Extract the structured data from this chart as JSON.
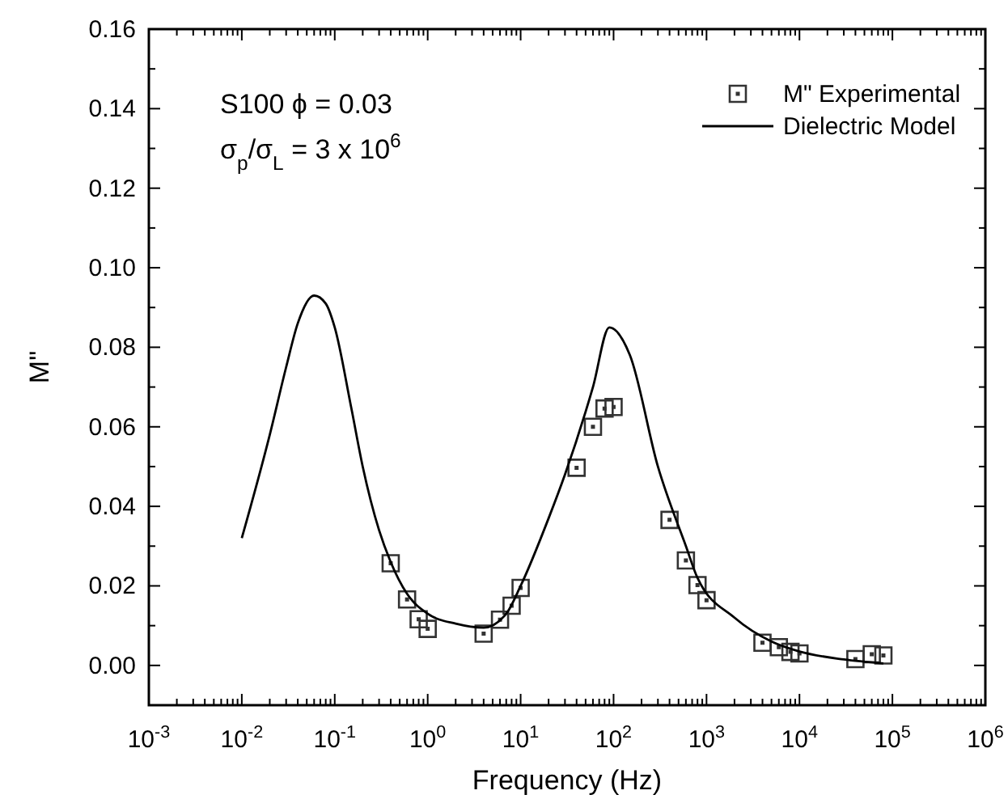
{
  "chart_data": {
    "type": "scatter",
    "xlabel": "Frequency (Hz)",
    "ylabel": "M\"",
    "log": "x",
    "legend": "top right",
    "grid": false,
    "xlim": [
      0.001,
      1000000
    ],
    "ylim": [
      -0.01,
      0.16
    ],
    "xticks": [
      {
        "value": 0.001,
        "label": "10$^{-3}$"
      },
      {
        "value": 0.01,
        "label": "10$^{-2}$"
      },
      {
        "value": 0.1,
        "label": "10$^{-1}$"
      },
      {
        "value": 1,
        "label": "10$^{0}$"
      },
      {
        "value": 10,
        "label": "10$^{1}$"
      },
      {
        "value": 100,
        "label": "10$^{2}$"
      },
      {
        "value": 1000,
        "label": "10$^{3}$"
      },
      {
        "value": 10000,
        "label": "10$^{4}$"
      },
      {
        "value": 100000,
        "label": "10$^{5}$"
      },
      {
        "value": 1000000,
        "label": "10$^{6}$"
      }
    ],
    "yticks": [
      {
        "value": 0,
        "label": "0.00"
      },
      {
        "value": 0.01,
        "label": null
      },
      {
        "value": 0.02,
        "label": "0.02"
      },
      {
        "value": 0.03,
        "label": null
      },
      {
        "value": 0.04,
        "label": "0.04"
      },
      {
        "value": 0.05,
        "label": null
      },
      {
        "value": 0.06,
        "label": "0.06"
      },
      {
        "value": 0.07,
        "label": null
      },
      {
        "value": 0.08,
        "label": "0.08"
      },
      {
        "value": 0.09,
        "label": null
      },
      {
        "value": 0.1,
        "label": "0.10"
      },
      {
        "value": 0.11,
        "label": null
      },
      {
        "value": 0.12,
        "label": "0.12"
      },
      {
        "value": 0.13,
        "label": null
      },
      {
        "value": 0.14,
        "label": "0.14"
      },
      {
        "value": 0.15,
        "label": null
      },
      {
        "value": 0.16,
        "label": "0.16"
      }
    ],
    "annotations": [
      "S100 ϕ = 0.03",
      "σ$_{p}$/σ$_{L}$ = 3 x 10$^{6}$"
    ],
    "series": [
      {
        "name": "M\" Experimental",
        "type": "scatter",
        "marker": "square",
        "color": "#333333",
        "x": [
          0.4,
          0.6,
          0.8,
          1,
          4,
          6,
          8,
          10,
          40,
          60,
          80,
          100,
          400,
          600,
          800,
          1000,
          4000,
          6000,
          8000,
          10000,
          40000,
          60000,
          80000
        ],
        "values": [
          0.0257,
          0.0166,
          0.0116,
          0.0092,
          0.008,
          0.0115,
          0.015,
          0.0195,
          0.0497,
          0.06,
          0.0646,
          0.065,
          0.0366,
          0.0264,
          0.0202,
          0.0164,
          0.0057,
          0.0046,
          0.0034,
          0.003,
          0.0016,
          0.0028,
          0.0025
        ]
      },
      {
        "name": "Dielectric Model",
        "type": "line",
        "marker": "none",
        "line_style": "solid",
        "color": "#000000",
        "x": [
          0.01,
          0.02,
          0.03,
          0.04,
          0.06,
          0.08,
          0.1,
          0.15,
          0.2,
          0.3,
          0.4,
          0.6,
          1,
          2,
          4,
          7,
          10,
          20,
          30,
          60,
          90,
          150,
          300,
          600,
          800,
          2000,
          5000,
          10000,
          30000,
          80000
        ],
        "values": [
          0.032,
          0.058,
          0.075,
          0.086,
          0.093,
          0.091,
          0.085,
          0.065,
          0.05,
          0.034,
          0.026,
          0.018,
          0.013,
          0.0105,
          0.0095,
          0.013,
          0.02,
          0.037,
          0.048,
          0.07,
          0.085,
          0.078,
          0.05,
          0.03,
          0.022,
          0.012,
          0.006,
          0.0035,
          0.0015,
          0.0005
        ]
      }
    ]
  }
}
